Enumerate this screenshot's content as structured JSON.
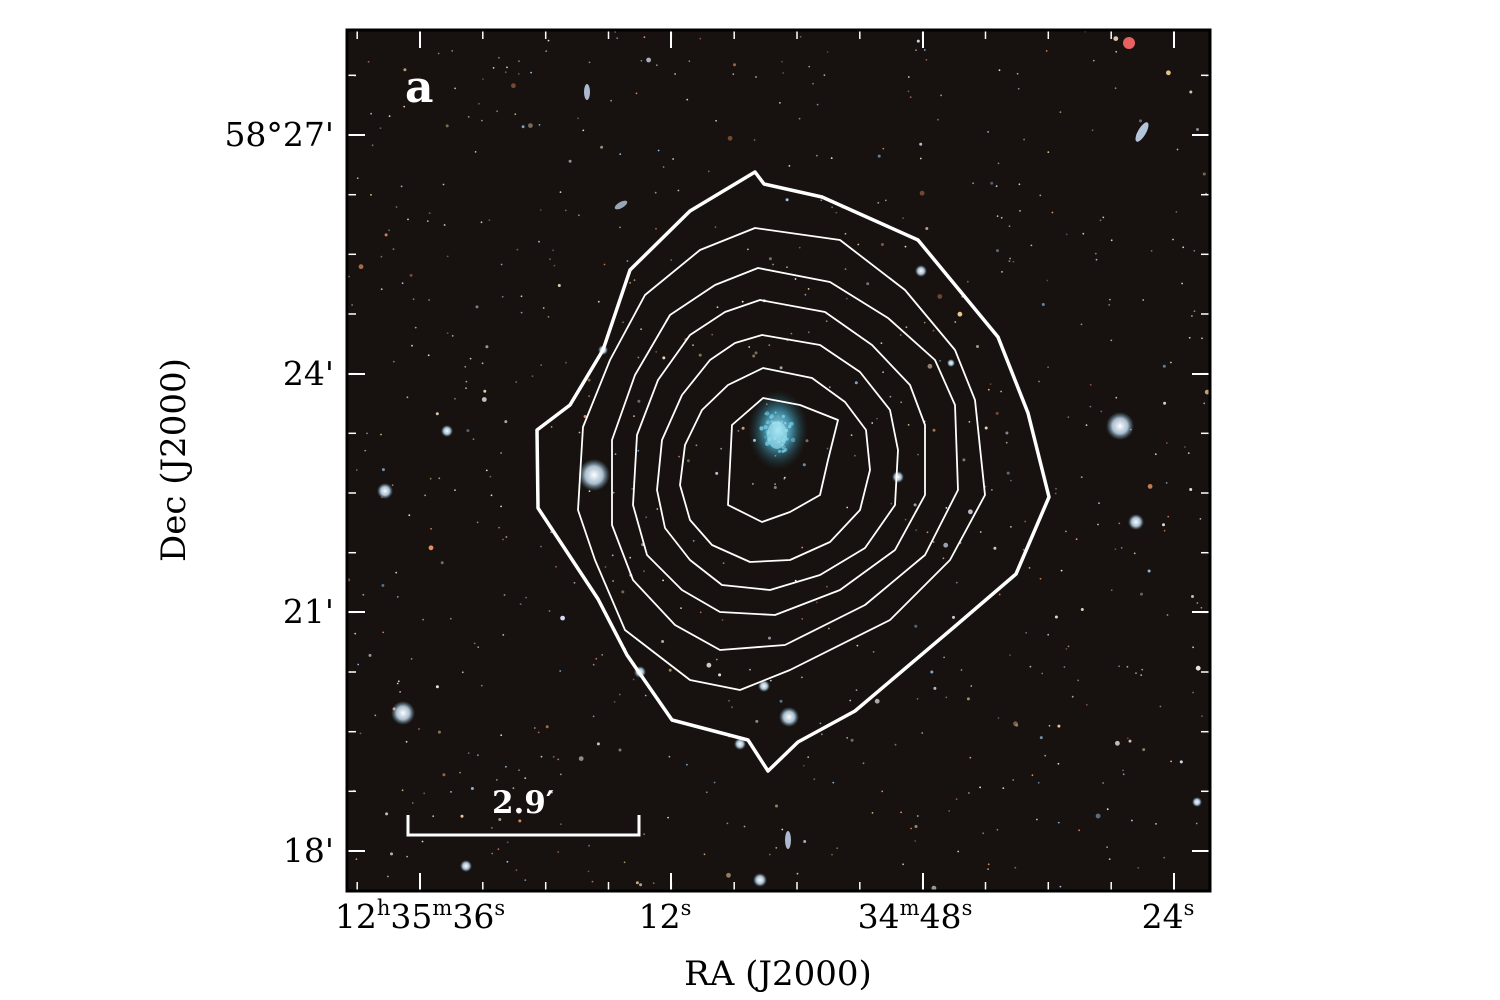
{
  "panel_label": "a",
  "scale_bar": {
    "label": "2.9′"
  },
  "axes": {
    "xlabel": "RA (J2000)",
    "ylabel": "Dec (J2000)",
    "xticks": [
      {
        "h": "12",
        "m": "35",
        "s": "36"
      },
      {
        "s": "12"
      },
      {
        "m": "34",
        "s": "48"
      },
      {
        "s": "24"
      }
    ],
    "yticks": [
      "58°27'",
      "24'",
      "21'",
      "18'"
    ]
  },
  "colors": {
    "sky_background": "#17120f",
    "contour": "#ffffff",
    "frame": "#000000",
    "galaxy": "#5cc8e6"
  }
}
